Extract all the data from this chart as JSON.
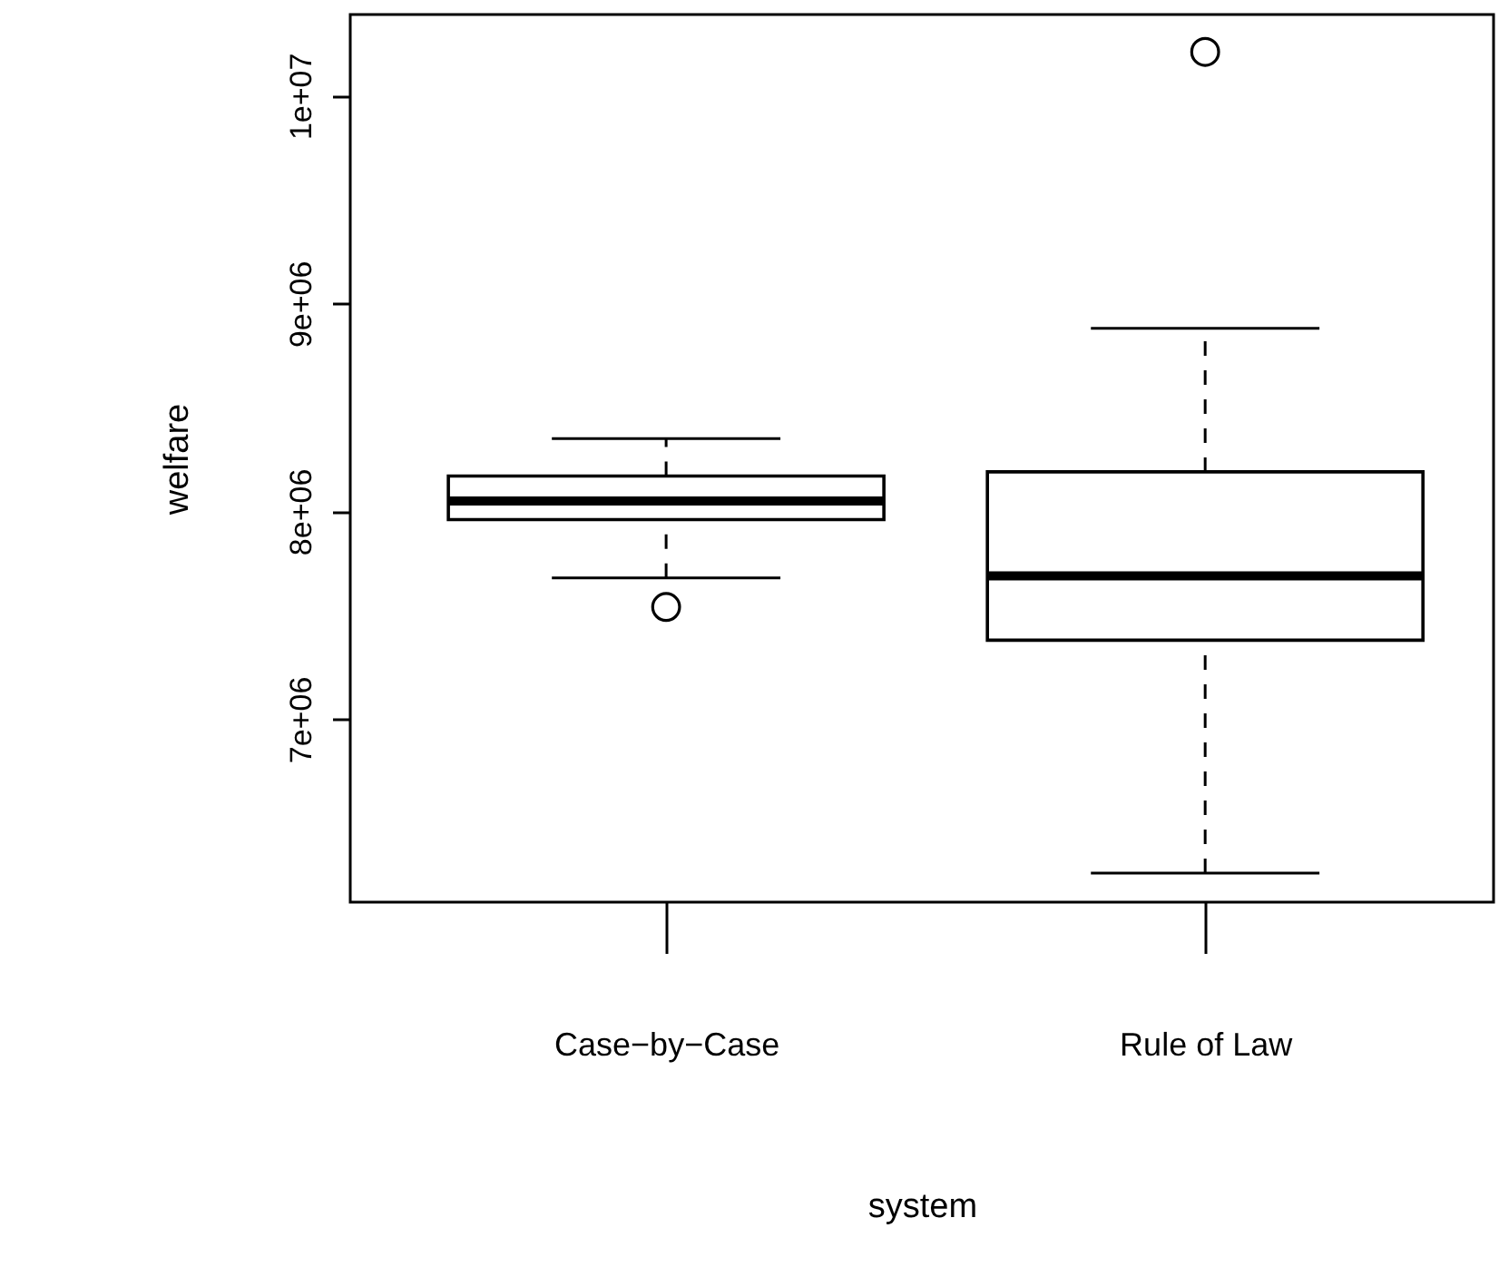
{
  "chart_data": {
    "type": "box",
    "xlabel": "system",
    "ylabel": "welfare",
    "categories": [
      "Case−by−Case",
      "Rule of Law"
    ],
    "boxes": [
      {
        "low": 7680000.0,
        "q1": 7960000.0,
        "median": 8050000.0,
        "q3": 8170000.0,
        "high": 8350000.0,
        "outliers": [
          7540000.0
        ]
      },
      {
        "low": 6260000.0,
        "q1": 7380000.0,
        "median": 7690000.0,
        "q3": 8190000.0,
        "high": 8880000.0,
        "outliers": [
          10210000.0
        ]
      }
    ],
    "ylim": [
      6120000.0,
      10390000.0
    ],
    "yticks": [
      {
        "value": 7000000,
        "label": "7e+06"
      },
      {
        "value": 8000000,
        "label": "8e+06"
      },
      {
        "value": 9000000,
        "label": "9e+06"
      },
      {
        "value": 10000000,
        "label": "1e+07"
      }
    ],
    "grid": false
  }
}
